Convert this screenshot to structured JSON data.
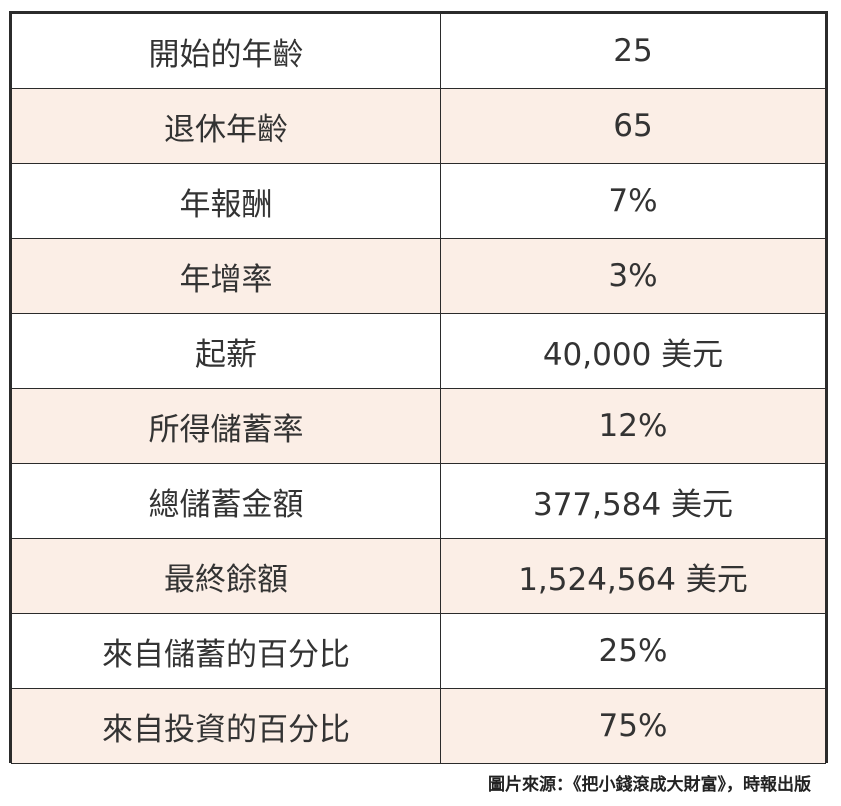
{
  "table": {
    "rows": [
      {
        "label": "開始的年齡",
        "value": "25"
      },
      {
        "label": "退休年齡",
        "value": "65"
      },
      {
        "label": "年報酬",
        "value": "7%"
      },
      {
        "label": "年增率",
        "value": "3%"
      },
      {
        "label": "起薪",
        "value": "40,000 美元"
      },
      {
        "label": "所得儲蓄率",
        "value": "12%"
      },
      {
        "label": "總儲蓄金額",
        "value": "377,584 美元"
      },
      {
        "label": "最終餘額",
        "value": "1,524,564 美元"
      },
      {
        "label": "來自儲蓄的百分比",
        "value": "25%"
      },
      {
        "label": "來自投資的百分比",
        "value": "75%"
      }
    ]
  },
  "caption": "圖片來源：《把小錢滾成大財富》，時報出版",
  "colors": {
    "row_shade": "#fbeee6",
    "row_plain": "#ffffff",
    "border": "#2b2b2b",
    "text": "#333333"
  }
}
